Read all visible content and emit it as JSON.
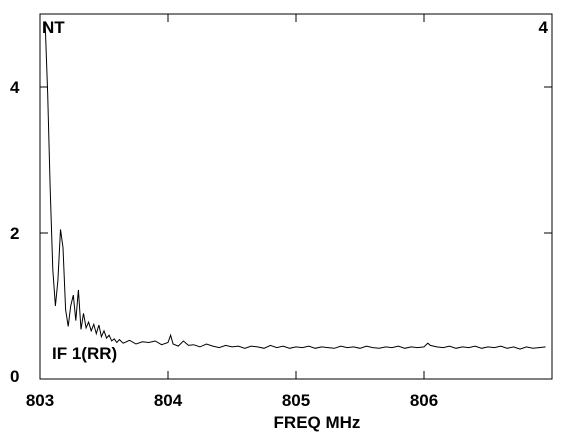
{
  "chart_data": {
    "type": "line",
    "corner_labels": {
      "top_left": "NT",
      "top_right": "4"
    },
    "annotation": "IF 1(RR)",
    "xlabel": "FREQ MHz",
    "ylabel": "",
    "xlim": [
      803.0,
      807.0
    ],
    "ylim": [
      0,
      5.0
    ],
    "x_ticks": [
      803,
      804,
      805,
      806
    ],
    "y_ticks": [
      0,
      2,
      4
    ],
    "x_tick_labels": [
      "803",
      "804",
      "805",
      "806"
    ],
    "y_tick_labels": [
      "0",
      "2",
      "4"
    ],
    "grid": false,
    "series": [
      {
        "x": [
          803.04,
          803.06,
          803.08,
          803.1,
          803.12,
          803.14,
          803.16,
          803.18,
          803.2,
          803.22,
          803.24,
          803.26,
          803.28,
          803.3,
          803.32,
          803.34,
          803.36,
          803.38,
          803.4,
          803.42,
          803.44,
          803.46,
          803.48,
          803.5,
          803.52,
          803.54,
          803.56,
          803.58,
          803.6,
          803.62,
          803.65,
          803.7,
          803.75,
          803.8,
          803.85,
          803.9,
          803.95,
          804.0,
          804.02,
          804.04,
          804.08,
          804.12,
          804.16,
          804.2,
          804.25,
          804.3,
          804.35,
          804.4,
          804.45,
          804.5,
          804.55,
          804.6,
          804.65,
          804.7,
          804.75,
          804.8,
          804.85,
          804.9,
          804.95,
          805.0,
          805.05,
          805.1,
          805.15,
          805.2,
          805.25,
          805.3,
          805.35,
          805.4,
          805.45,
          805.5,
          805.55,
          805.6,
          805.65,
          805.7,
          805.75,
          805.8,
          805.85,
          805.9,
          805.95,
          806.0,
          806.03,
          806.05,
          806.1,
          806.15,
          806.2,
          806.25,
          806.3,
          806.35,
          806.4,
          806.45,
          806.5,
          806.55,
          806.6,
          806.65,
          806.7,
          806.75,
          806.8,
          806.85,
          806.9,
          806.95
        ],
        "y": [
          4.9,
          3.9,
          2.6,
          1.5,
          1.0,
          1.35,
          2.05,
          1.8,
          0.95,
          0.72,
          1.0,
          1.15,
          0.8,
          1.22,
          0.68,
          0.9,
          0.7,
          0.78,
          0.66,
          0.75,
          0.62,
          0.74,
          0.58,
          0.66,
          0.56,
          0.6,
          0.52,
          0.55,
          0.5,
          0.54,
          0.49,
          0.53,
          0.48,
          0.51,
          0.5,
          0.52,
          0.47,
          0.5,
          0.6,
          0.48,
          0.45,
          0.52,
          0.46,
          0.47,
          0.44,
          0.48,
          0.45,
          0.43,
          0.46,
          0.44,
          0.45,
          0.42,
          0.45,
          0.44,
          0.42,
          0.46,
          0.43,
          0.45,
          0.42,
          0.44,
          0.43,
          0.45,
          0.42,
          0.44,
          0.43,
          0.42,
          0.45,
          0.43,
          0.44,
          0.42,
          0.45,
          0.43,
          0.42,
          0.44,
          0.43,
          0.45,
          0.42,
          0.44,
          0.43,
          0.44,
          0.49,
          0.46,
          0.44,
          0.43,
          0.45,
          0.42,
          0.44,
          0.43,
          0.45,
          0.42,
          0.44,
          0.43,
          0.45,
          0.42,
          0.44,
          0.41,
          0.44,
          0.42,
          0.43,
          0.44
        ]
      }
    ]
  }
}
